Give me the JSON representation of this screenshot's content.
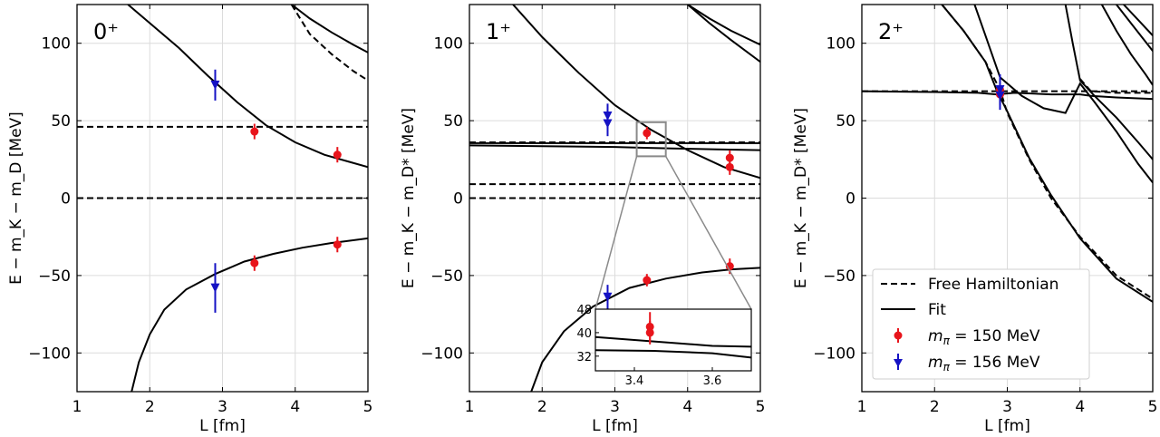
{
  "chart_data": [
    {
      "type": "line",
      "panel_label": "0⁺",
      "xlabel": "L [fm]",
      "ylabel": "E − m_K − m_D [MeV]",
      "xlim": [
        1,
        5
      ],
      "ylim": [
        -125,
        125
      ],
      "xticks": [
        "1",
        "2",
        "3",
        "4",
        "5"
      ],
      "yticks": [
        "−100",
        "−50",
        "0",
        "50",
        "100"
      ],
      "grid": true,
      "free_lines": [
        {
          "x": [
            1,
            5
          ],
          "y": [
            0,
            0
          ]
        },
        {
          "x": [
            1,
            5
          ],
          "y": [
            46,
            46
          ]
        },
        {
          "x": [
            3.95,
            4.2,
            4.5,
            4.8,
            5.0
          ],
          "y": [
            125,
            106,
            93,
            82,
            76
          ]
        }
      ],
      "fit_lines": [
        {
          "x": [
            1.75,
            1.85,
            2.0,
            2.2,
            2.5,
            2.9,
            3.3,
            3.7,
            4.1,
            4.5,
            5.0
          ],
          "y": [
            -125,
            -106,
            -88,
            -72,
            -59,
            -49,
            -41,
            -36,
            -32,
            -29,
            -26
          ]
        },
        {
          "x": [
            1.7,
            2.0,
            2.4,
            2.8,
            3.2,
            3.6,
            4.0,
            4.4,
            4.7,
            5.0
          ],
          "y": [
            125,
            113,
            97,
            79,
            62,
            47,
            36,
            28,
            24,
            20
          ]
        },
        {
          "x": [
            3.95,
            4.2,
            4.5,
            4.8,
            5.0
          ],
          "y": [
            125,
            116,
            107,
            99,
            94
          ]
        }
      ],
      "points_150": [
        {
          "L": 3.44,
          "E": 43,
          "err": 5
        },
        {
          "L": 4.58,
          "E": 28,
          "err": 5
        },
        {
          "L": 3.44,
          "E": -42,
          "err": 5
        },
        {
          "L": 4.58,
          "E": -30,
          "err": 5
        }
      ],
      "points_156": [
        {
          "L": 2.9,
          "E": 73,
          "err": 10
        },
        {
          "L": 2.9,
          "E": -58,
          "err": 16
        }
      ]
    },
    {
      "type": "line",
      "panel_label": "1⁺",
      "xlabel": "L [fm]",
      "ylabel": "E − m_K − m_D* [MeV]",
      "xlim": [
        1,
        5
      ],
      "ylim": [
        -125,
        125
      ],
      "xticks": [
        "1",
        "2",
        "3",
        "4",
        "5"
      ],
      "yticks": [
        "−100",
        "−50",
        "0",
        "50",
        "100"
      ],
      "grid": true,
      "free_lines": [
        {
          "x": [
            1,
            5
          ],
          "y": [
            0,
            0
          ]
        },
        {
          "x": [
            1,
            5
          ],
          "y": [
            9,
            9
          ]
        },
        {
          "x": [
            1,
            5
          ],
          "y": [
            36,
            36
          ]
        }
      ],
      "fit_lines": [
        {
          "x": [
            1,
            5
          ],
          "y": [
            35.5,
            35.5
          ]
        },
        {
          "x": [
            1.0,
            2.0,
            3.0,
            3.4,
            3.8,
            4.4,
            5.0
          ],
          "y": [
            34,
            33.5,
            33,
            32.5,
            32,
            31.5,
            31
          ]
        },
        {
          "x": [
            1.6,
            2.0,
            2.5,
            3.0,
            3.5,
            4.0,
            4.5,
            5.0
          ],
          "y": [
            125,
            104,
            81,
            60,
            44,
            31,
            20,
            13
          ]
        },
        {
          "x": [
            1.85,
            2.0,
            2.3,
            2.7,
            3.2,
            3.7,
            4.2,
            4.6,
            5.0
          ],
          "y": [
            -125,
            -106,
            -86,
            -70,
            -58,
            -52,
            -48,
            -46,
            -45
          ]
        },
        {
          "x": [
            4.0,
            4.3,
            4.6,
            5.0
          ],
          "y": [
            125,
            113,
            102,
            88
          ]
        },
        {
          "x": [
            4.0,
            4.3,
            4.6,
            5.0
          ],
          "y": [
            125,
            116,
            108,
            99
          ]
        }
      ],
      "points_150": [
        {
          "L": 3.44,
          "E": 42,
          "err": 4
        },
        {
          "L": 4.58,
          "E": 26,
          "err": 5
        },
        {
          "L": 4.58,
          "E": 20,
          "err": 5
        },
        {
          "L": 3.44,
          "E": -53,
          "err": 4
        },
        {
          "L": 4.58,
          "E": -44,
          "err": 5
        }
      ],
      "points_156": [
        {
          "L": 2.9,
          "E": 53,
          "err": 8
        },
        {
          "L": 2.9,
          "E": 48,
          "err": 8
        },
        {
          "L": 2.9,
          "E": -64,
          "err": 8
        }
      ],
      "zoom_box": {
        "x": [
          3.3,
          3.7
        ],
        "y": [
          27,
          49
        ]
      },
      "inset": {
        "xlim": [
          3.3,
          3.7
        ],
        "ylim": [
          27,
          48
        ],
        "xticks": [
          "3.4",
          "3.6"
        ],
        "yticks": [
          "32",
          "40",
          "48"
        ],
        "fit_lines": [
          {
            "x": [
              3.3,
              3.45,
              3.6,
              3.7
            ],
            "y": [
              38.5,
              37,
              35.5,
              35.2
            ]
          },
          {
            "x": [
              3.3,
              3.45,
              3.6,
              3.7
            ],
            "y": [
              34,
              33.8,
              33,
              31.5
            ]
          }
        ],
        "points_150": [
          {
            "L": 3.44,
            "E": 42,
            "err": 5
          },
          {
            "L": 3.44,
            "E": 40,
            "err": 4
          }
        ]
      }
    },
    {
      "type": "line",
      "panel_label": "2⁺",
      "xlabel": "L [fm]",
      "ylabel": "E − m_K − m_D* [MeV]",
      "xlim": [
        1,
        5
      ],
      "ylim": [
        -125,
        125
      ],
      "xticks": [
        "1",
        "2",
        "3",
        "4",
        "5"
      ],
      "yticks": [
        "−100",
        "−50",
        "0",
        "50",
        "100"
      ],
      "grid": true,
      "free_lines": [
        {
          "x": [
            1,
            5
          ],
          "y": [
            69,
            69
          ]
        },
        {
          "x": [
            2.1,
            2.4,
            2.7,
            2.9,
            3.0,
            3.3,
            3.6,
            4.0,
            4.5,
            5.0
          ],
          "y": [
            125,
            108,
            88,
            70,
            55,
            25,
            0,
            -25,
            -50,
            -65
          ]
        },
        {
          "x": [
            4.0,
            4.15,
            4.5,
            5.0
          ],
          "y": [
            77,
            69,
            68,
            68
          ]
        }
      ],
      "fit_lines": [
        {
          "x": [
            1,
            2.0,
            2.6,
            2.85,
            3.1,
            3.6,
            4.0,
            4.15,
            4.5,
            5.0
          ],
          "y": [
            69,
            68.5,
            68,
            67,
            68,
            67,
            67,
            66,
            65,
            64
          ]
        },
        {
          "x": [
            2.1,
            2.4,
            2.7,
            2.85,
            3.0,
            3.3,
            3.6,
            4.0,
            4.5,
            5.0
          ],
          "y": [
            125,
            108,
            88,
            70,
            56,
            26,
            2,
            -26,
            -52,
            -67
          ]
        },
        {
          "x": [
            2.55,
            2.7,
            2.9,
            3.2,
            3.5,
            3.8,
            4.0,
            4.2,
            4.5,
            4.8,
            5.0
          ],
          "y": [
            125,
            105,
            78,
            66,
            58,
            55,
            74,
            62,
            43,
            22,
            10
          ]
        },
        {
          "x": [
            3.8,
            3.9,
            4.0,
            4.2,
            4.5,
            4.8,
            5.0
          ],
          "y": [
            125,
            100,
            76,
            66,
            52,
            36,
            25
          ]
        },
        {
          "x": [
            4.3,
            4.5,
            4.7,
            4.9,
            5.0
          ],
          "y": [
            125,
            108,
            93,
            80,
            73
          ]
        },
        {
          "x": [
            4.5,
            4.7,
            4.9,
            5.0
          ],
          "y": [
            125,
            113,
            101,
            95
          ]
        },
        {
          "x": [
            4.6,
            4.8,
            5.0
          ],
          "y": [
            125,
            115,
            105
          ]
        }
      ],
      "points_150": [
        {
          "L": 2.9,
          "E": 70,
          "err": 5
        },
        {
          "L": 2.9,
          "E": 67,
          "err": 5
        }
      ],
      "points_156": [
        {
          "L": 2.9,
          "E": 70,
          "err": 10
        },
        {
          "L": 2.9,
          "E": 66,
          "err": 9
        }
      ]
    }
  ],
  "legend": {
    "free": "Free Hamiltonian",
    "fit": "Fit",
    "pion150_prefix": "m",
    "pion150_sub": "π",
    "pion150_value": " = 150 MeV",
    "pion156_prefix": "m",
    "pion156_sub": "π",
    "pion156_value": " = 156 MeV"
  },
  "colors": {
    "pion150": "#e8141b",
    "pion156": "#1512c4",
    "line": "#000000",
    "grid": "#dcdcdc",
    "zoom": "#8a8a8a"
  }
}
